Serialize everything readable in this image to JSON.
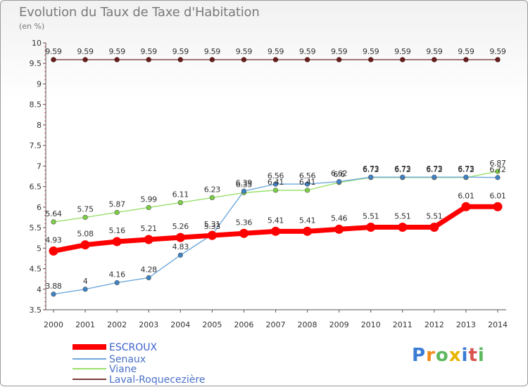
{
  "title": "Evolution du Taux de Taxe d'Habitation",
  "subtitle": "(en %)",
  "logo_text": "Proxiti",
  "chart_data": {
    "type": "line",
    "x": [
      "2000",
      "2001",
      "2002",
      "2003",
      "2004",
      "2005",
      "2006",
      "2007",
      "2008",
      "2009",
      "2010",
      "2011",
      "2012",
      "2013",
      "2014"
    ],
    "ylim": [
      3.5,
      10
    ],
    "yticks": [
      "3.5",
      "4",
      "4.5",
      "5",
      "5.5",
      "6",
      "6.5",
      "7",
      "7.5",
      "8",
      "8.5",
      "9",
      "9.5",
      "10"
    ],
    "grid": false,
    "legend_position": "bottom-left",
    "series": [
      {
        "name": "ESCROUX",
        "color": "#ff0000",
        "values": [
          4.93,
          5.08,
          5.16,
          5.21,
          5.26,
          5.31,
          5.36,
          5.41,
          5.41,
          5.46,
          5.51,
          5.51,
          5.51,
          6.01,
          6.01
        ]
      },
      {
        "name": "Senaux",
        "color": "#6fa8dc",
        "values": [
          3.88,
          4,
          4.16,
          4.28,
          4.83,
          5.33,
          6.39,
          6.56,
          6.56,
          6.62,
          6.73,
          6.73,
          6.73,
          6.73,
          6.72
        ]
      },
      {
        "name": "Viane",
        "color": "#99e06b",
        "values": [
          5.64,
          5.75,
          5.87,
          5.99,
          6.11,
          6.23,
          6.35,
          6.41,
          6.41,
          6.6,
          6.72,
          6.72,
          6.72,
          6.72,
          6.87
        ]
      },
      {
        "name": "Laval-Roquecezière",
        "color": "#7a3b3b",
        "values": [
          9.59,
          9.59,
          9.59,
          9.59,
          9.59,
          9.59,
          9.59,
          9.59,
          9.59,
          9.59,
          9.59,
          9.59,
          9.59,
          9.59,
          9.59
        ]
      }
    ]
  }
}
